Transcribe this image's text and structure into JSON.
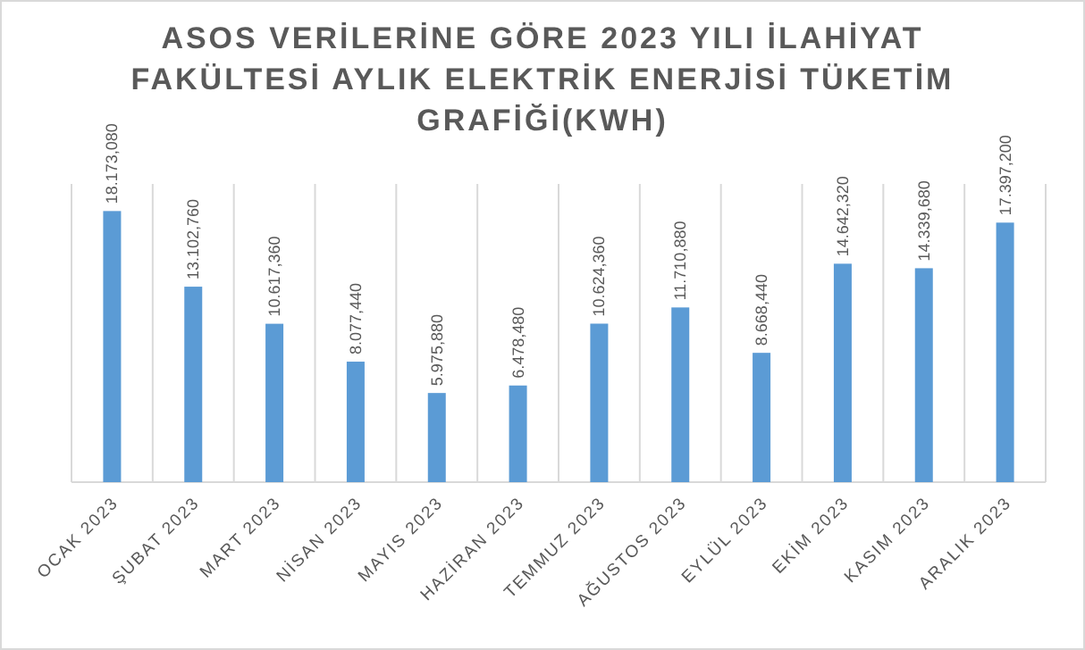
{
  "chart_data": {
    "type": "bar",
    "title": "ASOS VERİLERİNE GÖRE 2023 YILI İLAHİYAT FAKÜLTESİ AYLIK ELEKTRİK ENERJİSİ TÜKETİM GRAFİĞİ(KWH)",
    "categories": [
      "OCAK 2023",
      "ŞUBAT 2023",
      "MART 2023",
      "NİSAN 2023",
      "MAYIS 2023",
      "HAZİRAN 2023",
      "TEMMUZ 2023",
      "AĞUSTOS 2023",
      "EYLÜL 2023",
      "EKİM 2023",
      "KASIM 2023",
      "ARALIK 2023"
    ],
    "values": [
      18173.08,
      13102.76,
      10617.36,
      8077.44,
      5975.88,
      6478.48,
      10624.36,
      11710.88,
      8668.44,
      14642.32,
      14339.68,
      17397.2
    ],
    "value_labels": [
      "18.173,080",
      "13.102,760",
      "10.617,360",
      "8.077,440",
      "5.975,880",
      "6.478,480",
      "10.624,360",
      "11.710,880",
      "8.668,440",
      "14.642,320",
      "14.339,680",
      "17.397,200"
    ],
    "color": "#5b9bd5",
    "grid": "x"
  }
}
